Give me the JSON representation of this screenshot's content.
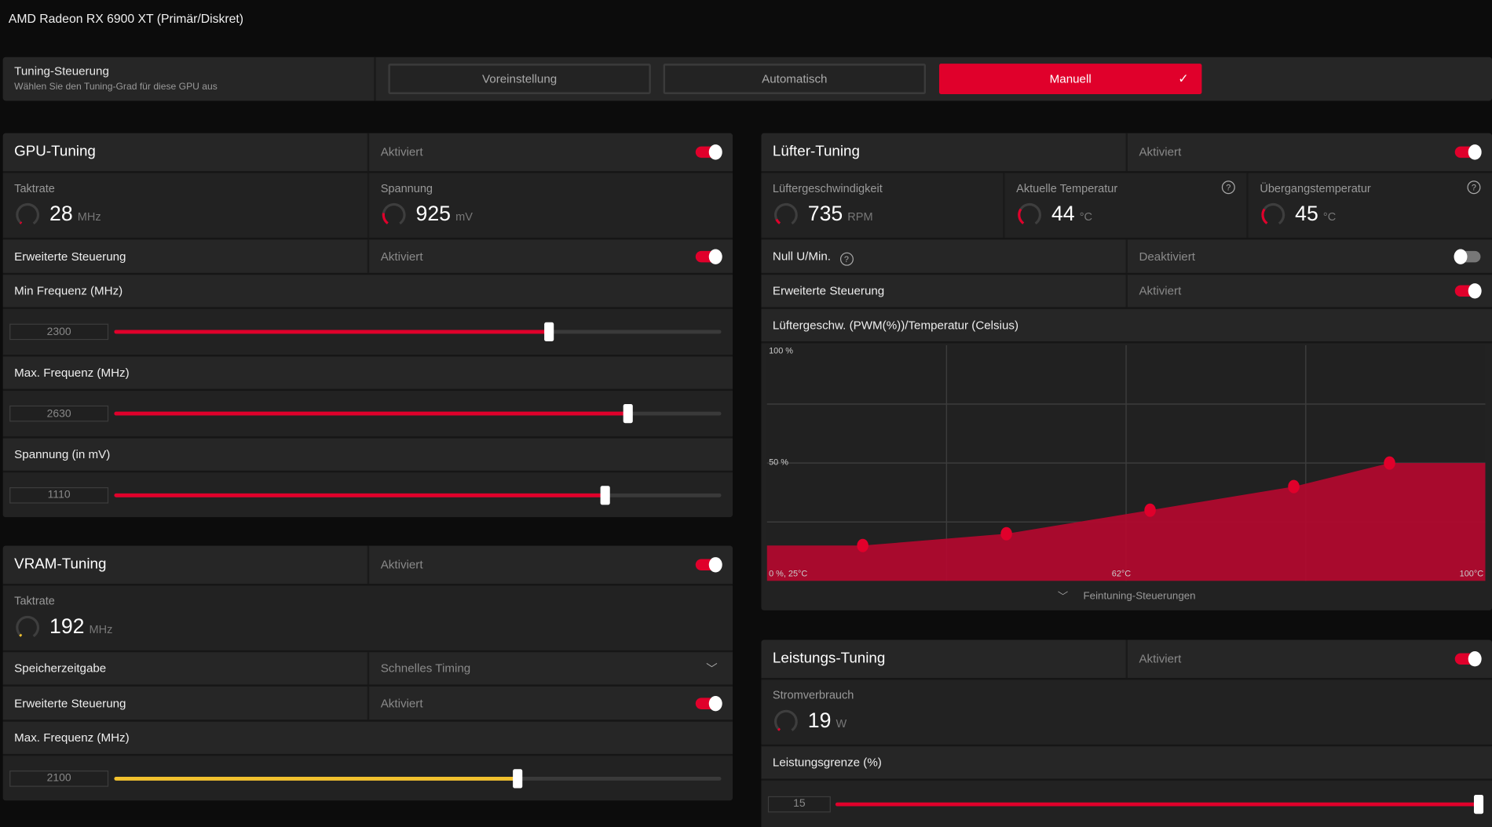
{
  "window": {
    "title": "AMD Radeon RX 6900 XT (Primär/Diskret)"
  },
  "tuning_control": {
    "label": "Tuning-Steuerung",
    "sublabel": "Wählen Sie den Tuning-Grad für diese GPU aus",
    "options": [
      "Voreinstellung",
      "Automatisch",
      "Manuell"
    ],
    "selected": "Manuell",
    "accent": "#e0002b"
  },
  "gpu": {
    "title": "GPU-Tuning",
    "status": "Aktiviert",
    "enabled": true,
    "clock": {
      "label": "Taktrate",
      "value": "28",
      "unit": "MHz"
    },
    "voltage": {
      "label": "Spannung",
      "value": "925",
      "unit": "mV"
    },
    "advanced": {
      "label": "Erweiterte Steuerung",
      "status": "Aktiviert",
      "enabled": true
    },
    "sliders": [
      {
        "label": "Min Frequenz (MHz)",
        "value": "2300",
        "fraction": 0.716
      },
      {
        "label": "Max. Frequenz (MHz)",
        "value": "2630",
        "fraction": 0.846
      },
      {
        "label": "Spannung (in mV)",
        "value": "1110",
        "fraction": 0.808
      }
    ]
  },
  "vram": {
    "title": "VRAM-Tuning",
    "status": "Aktiviert",
    "enabled": true,
    "clock": {
      "label": "Taktrate",
      "value": "192",
      "unit": "MHz"
    },
    "timing": {
      "label": "Speicherzeitgabe",
      "value": "Schnelles Timing"
    },
    "advanced": {
      "label": "Erweiterte Steuerung",
      "status": "Aktiviert",
      "enabled": true
    },
    "slider": {
      "label": "Max. Frequenz (MHz)",
      "value": "2100",
      "fraction": 0.664,
      "color": "#f2c12e"
    }
  },
  "fan": {
    "title": "Lüfter-Tuning",
    "status": "Aktiviert",
    "enabled": true,
    "speed": {
      "label": "Lüftergeschwindigkeit",
      "value": "735",
      "unit": "RPM"
    },
    "temp": {
      "label": "Aktuelle Temperatur",
      "value": "44",
      "unit": "°C"
    },
    "junction": {
      "label": "Übergangstemperatur",
      "value": "45",
      "unit": "°C"
    },
    "zero_rpm": {
      "label": "Null U/Min.",
      "status": "Deaktiviert",
      "enabled": false
    },
    "advanced": {
      "label": "Erweiterte Steuerung",
      "status": "Aktiviert",
      "enabled": true
    },
    "curve_label": "Lüftergeschw. (PWM(%))/Temperatur (Celsius)",
    "fine_tuning": "Feintuning-Steuerungen"
  },
  "power": {
    "title": "Leistungs-Tuning",
    "status": "Aktiviert",
    "enabled": true,
    "consumption": {
      "label": "Stromverbrauch",
      "value": "19",
      "unit": "W"
    },
    "slider": {
      "label": "Leistungsgrenze (%)",
      "value": "15",
      "fraction": 1.0
    }
  },
  "chart_data": {
    "type": "area",
    "x_unit": "°C",
    "y_unit": "%",
    "xlim": [
      25,
      100
    ],
    "ylim": [
      0,
      100
    ],
    "grid": true,
    "points": [
      {
        "x": 35,
        "y": 15
      },
      {
        "x": 50,
        "y": 20
      },
      {
        "x": 65,
        "y": 30
      },
      {
        "x": 80,
        "y": 40
      },
      {
        "x": 90,
        "y": 50
      }
    ],
    "tick_labels": {
      "y_top": "100 %",
      "y_mid": "50 %",
      "origin": "0 %, 25°C",
      "x_mid": "62°C",
      "x_max": "100°C"
    },
    "color": "#e0002b"
  }
}
